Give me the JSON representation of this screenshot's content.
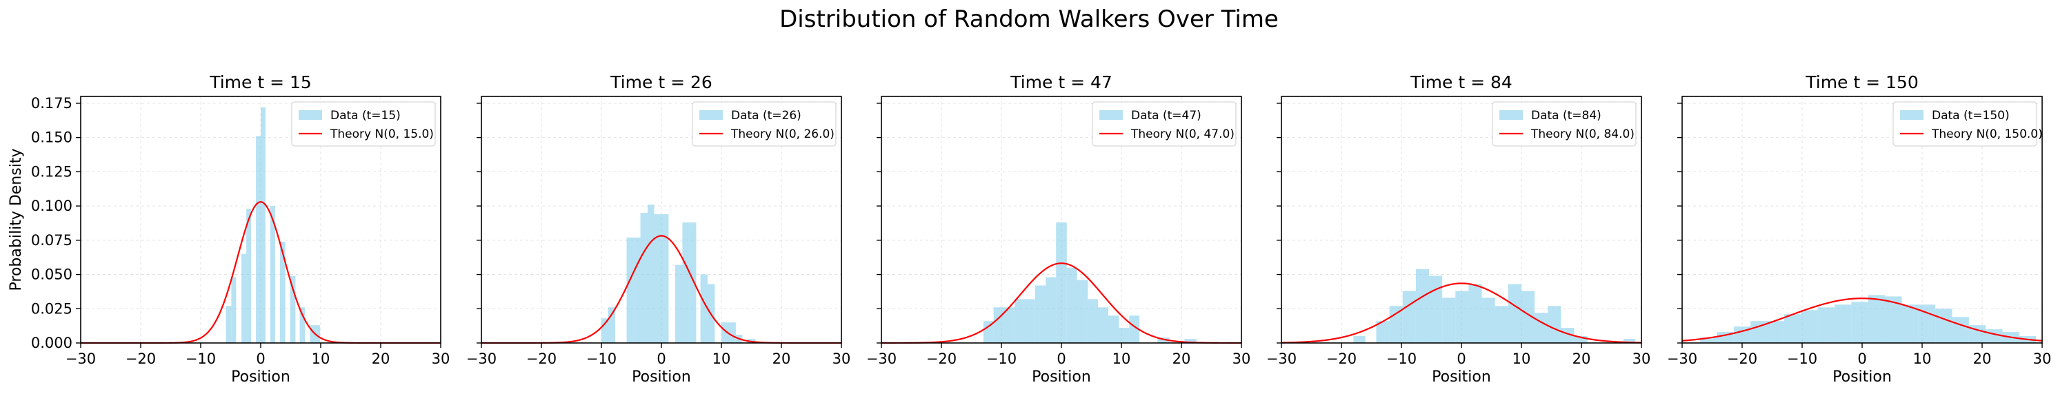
{
  "suptitle": "Distribution of Random Walkers Over Time",
  "colors": {
    "bar": "#87CEEB",
    "curve": "#FF0000",
    "grid": "#b0b0b0"
  },
  "chart_data": {
    "type": "bar",
    "shared_y_axis": true,
    "ylabel": "Probability Density",
    "xlabel": "Position",
    "xlim": [
      -30,
      30
    ],
    "ylim": [
      0,
      0.18
    ],
    "xticks": [
      "−30",
      "−20",
      "−10",
      "0",
      "10",
      "20",
      "30"
    ],
    "yticks": [
      "0.000",
      "0.025",
      "0.050",
      "0.075",
      "0.100",
      "0.125",
      "0.150",
      "0.175"
    ],
    "grid": true,
    "legend_location": "upper right",
    "panels": [
      {
        "title": "Time t = 15",
        "t": 15,
        "data_label": "Data (t=15)",
        "theory_label": "Theory N(0, 15.0)",
        "bins": [
          {
            "x0": -7.5,
            "x1": -6.5,
            "y": 0.0
          },
          {
            "x0": -5.8,
            "x1": -4.9,
            "y": 0.027
          },
          {
            "x0": -4.9,
            "x1": -4.1,
            "y": 0.048
          },
          {
            "x0": -3.2,
            "x1": -2.4,
            "y": 0.065
          },
          {
            "x0": -2.4,
            "x1": -1.6,
            "y": 0.098
          },
          {
            "x0": -0.8,
            "x1": 0.0,
            "y": 0.151
          },
          {
            "x0": 0.0,
            "x1": 0.8,
            "y": 0.172
          },
          {
            "x0": 1.6,
            "x1": 2.4,
            "y": 0.1
          },
          {
            "x0": 3.2,
            "x1": 4.1,
            "y": 0.074
          },
          {
            "x0": 4.9,
            "x1": 5.8,
            "y": 0.049
          },
          {
            "x0": 6.5,
            "x1": 7.4,
            "y": 0.026
          },
          {
            "x0": 8.2,
            "x1": 9.9,
            "y": 0.013
          }
        ]
      },
      {
        "title": "Time t = 26",
        "t": 26,
        "data_label": "Data (t=26)",
        "theory_label": "Theory N(0, 26.0)",
        "bins": [
          {
            "x0": -10.0,
            "x1": -8.9,
            "y": 0.018
          },
          {
            "x0": -8.9,
            "x1": -7.7,
            "y": 0.026
          },
          {
            "x0": -5.8,
            "x1": -4.7,
            "y": 0.077
          },
          {
            "x0": -4.7,
            "x1": -3.5,
            "y": 0.077
          },
          {
            "x0": -3.5,
            "x1": -2.3,
            "y": 0.095
          },
          {
            "x0": -2.3,
            "x1": -1.2,
            "y": 0.101
          },
          {
            "x0": -1.2,
            "x1": 0.0,
            "y": 0.094
          },
          {
            "x0": 0.0,
            "x1": 1.2,
            "y": 0.094
          },
          {
            "x0": 2.3,
            "x1": 3.5,
            "y": 0.057
          },
          {
            "x0": 3.5,
            "x1": 4.7,
            "y": 0.088
          },
          {
            "x0": 4.7,
            "x1": 5.8,
            "y": 0.088
          },
          {
            "x0": 6.5,
            "x1": 7.7,
            "y": 0.05
          },
          {
            "x0": 7.7,
            "x1": 8.9,
            "y": 0.043
          },
          {
            "x0": 10.0,
            "x1": 11.2,
            "y": 0.015
          },
          {
            "x0": 11.2,
            "x1": 12.4,
            "y": 0.015
          },
          {
            "x0": 12.4,
            "x1": 13.5,
            "y": 0.006
          },
          {
            "x0": 14.3,
            "x1": 15.7,
            "y": 0.003
          }
        ]
      },
      {
        "title": "Time t = 47",
        "t": 47,
        "data_label": "Data (t=47)",
        "theory_label": "Theory N(0, 47.0)",
        "bins": [
          {
            "x0": -13.0,
            "x1": -11.3,
            "y": 0.016
          },
          {
            "x0": -11.3,
            "x1": -9.6,
            "y": 0.026
          },
          {
            "x0": -9.6,
            "x1": -7.8,
            "y": 0.026
          },
          {
            "x0": -7.8,
            "x1": -6.1,
            "y": 0.032
          },
          {
            "x0": -6.1,
            "x1": -4.4,
            "y": 0.032
          },
          {
            "x0": -4.4,
            "x1": -2.6,
            "y": 0.042
          },
          {
            "x0": -2.6,
            "x1": -0.9,
            "y": 0.048
          },
          {
            "x0": -0.9,
            "x1": 0.9,
            "y": 0.088
          },
          {
            "x0": 0.9,
            "x1": 2.6,
            "y": 0.055
          },
          {
            "x0": 2.6,
            "x1": 4.4,
            "y": 0.046
          },
          {
            "x0": 4.4,
            "x1": 6.1,
            "y": 0.032
          },
          {
            "x0": 6.1,
            "x1": 7.8,
            "y": 0.026
          },
          {
            "x0": 7.8,
            "x1": 9.6,
            "y": 0.02
          },
          {
            "x0": 9.6,
            "x1": 11.3,
            "y": 0.011
          },
          {
            "x0": 11.3,
            "x1": 13.0,
            "y": 0.02
          },
          {
            "x0": 16.0,
            "x1": 18.0,
            "y": 0.004
          },
          {
            "x0": 20.5,
            "x1": 22.5,
            "y": 0.003
          }
        ]
      },
      {
        "title": "Time t = 84",
        "t": 84,
        "data_label": "Data (t=84)",
        "theory_label": "Theory N(0, 84.0)",
        "bins": [
          {
            "x0": -18.0,
            "x1": -16.0,
            "y": 0.005
          },
          {
            "x0": -14.2,
            "x1": -12.0,
            "y": 0.016
          },
          {
            "x0": -12.0,
            "x1": -9.8,
            "y": 0.027
          },
          {
            "x0": -9.8,
            "x1": -7.6,
            "y": 0.038
          },
          {
            "x0": -7.6,
            "x1": -5.4,
            "y": 0.054
          },
          {
            "x0": -5.4,
            "x1": -3.2,
            "y": 0.049
          },
          {
            "x0": -3.2,
            "x1": -1.0,
            "y": 0.033
          },
          {
            "x0": -1.0,
            "x1": 1.2,
            "y": 0.038
          },
          {
            "x0": 1.2,
            "x1": 3.4,
            "y": 0.043
          },
          {
            "x0": 3.4,
            "x1": 5.6,
            "y": 0.033
          },
          {
            "x0": 5.6,
            "x1": 7.8,
            "y": 0.027
          },
          {
            "x0": 7.8,
            "x1": 10.0,
            "y": 0.043
          },
          {
            "x0": 10.0,
            "x1": 12.2,
            "y": 0.038
          },
          {
            "x0": 12.2,
            "x1": 14.4,
            "y": 0.022
          },
          {
            "x0": 14.4,
            "x1": 16.6,
            "y": 0.027
          },
          {
            "x0": 16.6,
            "x1": 18.8,
            "y": 0.011
          },
          {
            "x0": 18.8,
            "x1": 21.0,
            "y": 0.005
          },
          {
            "x0": 27.0,
            "x1": 29.0,
            "y": 0.003
          }
        ]
      },
      {
        "title": "Time t = 150",
        "t": 150,
        "data_label": "Data (t=150)",
        "theory_label": "Theory N(0, 150.0)",
        "bins": [
          {
            "x0": -27.0,
            "x1": -24.2,
            "y": 0.004
          },
          {
            "x0": -24.2,
            "x1": -21.4,
            "y": 0.008
          },
          {
            "x0": -21.4,
            "x1": -18.6,
            "y": 0.012
          },
          {
            "x0": -18.6,
            "x1": -15.8,
            "y": 0.016
          },
          {
            "x0": -15.8,
            "x1": -13.0,
            "y": 0.016
          },
          {
            "x0": -13.0,
            "x1": -10.2,
            "y": 0.021
          },
          {
            "x0": -10.2,
            "x1": -7.4,
            "y": 0.024
          },
          {
            "x0": -7.4,
            "x1": -4.6,
            "y": 0.026
          },
          {
            "x0": -4.6,
            "x1": -1.8,
            "y": 0.028
          },
          {
            "x0": -1.8,
            "x1": 1.0,
            "y": 0.03
          },
          {
            "x0": 1.0,
            "x1": 3.8,
            "y": 0.035
          },
          {
            "x0": 3.8,
            "x1": 6.6,
            "y": 0.034
          },
          {
            "x0": 6.6,
            "x1": 9.4,
            "y": 0.028
          },
          {
            "x0": 9.4,
            "x1": 12.2,
            "y": 0.028
          },
          {
            "x0": 12.2,
            "x1": 15.0,
            "y": 0.025
          },
          {
            "x0": 15.0,
            "x1": 17.8,
            "y": 0.019
          },
          {
            "x0": 17.8,
            "x1": 20.6,
            "y": 0.013
          },
          {
            "x0": 20.6,
            "x1": 23.4,
            "y": 0.01
          },
          {
            "x0": 23.4,
            "x1": 26.2,
            "y": 0.008
          },
          {
            "x0": 26.2,
            "x1": 29.0,
            "y": 0.005
          }
        ]
      }
    ]
  }
}
